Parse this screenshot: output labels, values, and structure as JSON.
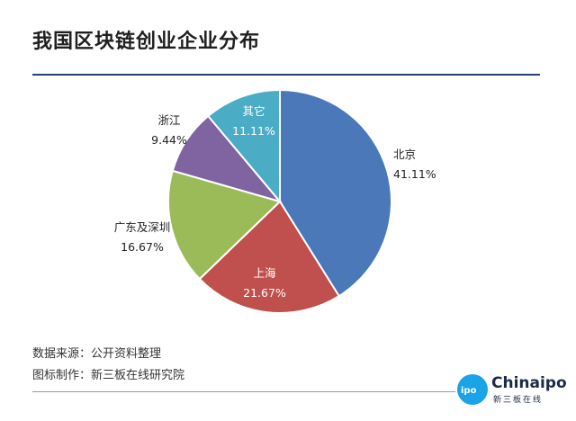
{
  "title": "我国区块链创业企业分布",
  "chart_data": {
    "type": "pie",
    "title": "我国区块链创业企业分布",
    "slices": [
      {
        "label": "北京",
        "value": 41.11,
        "value_label": "41.11%",
        "color": "#4a78b8"
      },
      {
        "label": "上海",
        "value": 21.67,
        "value_label": "21.67%",
        "color": "#c0504d"
      },
      {
        "label": "广东及深圳",
        "value": 16.67,
        "value_label": "16.67%",
        "color": "#9bbb59"
      },
      {
        "label": "浙江",
        "value": 9.44,
        "value_label": "9.44%",
        "color": "#8064a2"
      },
      {
        "label": "其它",
        "value": 11.11,
        "value_label": "11.11%",
        "color": "#4bacc6"
      }
    ],
    "start_angle_deg": 0,
    "direction": "clockwise"
  },
  "footer": {
    "source": "数据来源：公开资料整理",
    "maker": "图标制作：新三板在线研究院"
  },
  "logo": {
    "badge": "ipo",
    "name": "Chinaipo",
    "subtitle": "新三板在线"
  }
}
